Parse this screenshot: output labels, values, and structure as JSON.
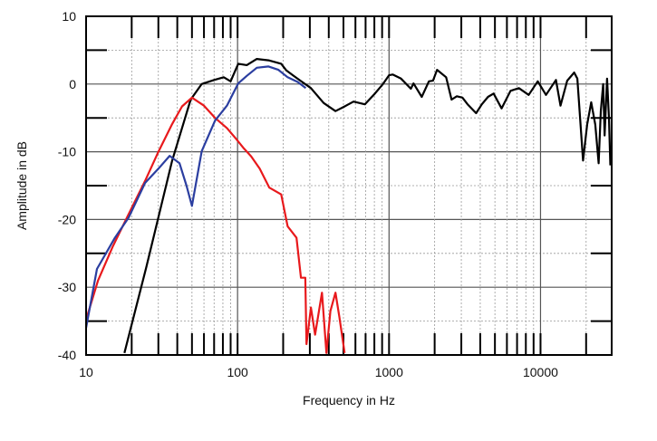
{
  "chart_data": {
    "type": "line",
    "title": "",
    "xlabel": "Frequency in Hz",
    "ylabel": "Amplitude in dB",
    "xscale": "log",
    "xlim": [
      10,
      29500
    ],
    "ylim": [
      -40,
      10
    ],
    "xticks": [
      10,
      100,
      1000,
      10000
    ],
    "xtick_labels": [
      "10",
      "100",
      "1000",
      "10000"
    ],
    "yticks": [
      10,
      0,
      -10,
      -20,
      -30,
      -40
    ],
    "ytick_labels": [
      "10",
      "0",
      "-10",
      "-20",
      "-30",
      "-40"
    ],
    "grid": true,
    "legend": "none",
    "series": [
      {
        "name": "black",
        "color": "#000000",
        "points": [
          [
            17.9,
            -39.7
          ],
          [
            25,
            -27
          ],
          [
            37,
            -11.3
          ],
          [
            49,
            -2.3
          ],
          [
            58,
            0
          ],
          [
            70,
            0.6
          ],
          [
            81,
            1
          ],
          [
            90,
            0.4
          ],
          [
            101,
            3
          ],
          [
            115,
            2.8
          ],
          [
            134,
            3.7
          ],
          [
            160,
            3.5
          ],
          [
            194,
            3
          ],
          [
            210,
            2
          ],
          [
            232,
            1.3
          ],
          [
            260,
            0.5
          ],
          [
            305,
            -0.6
          ],
          [
            370,
            -2.8
          ],
          [
            443,
            -4
          ],
          [
            510,
            -3.3
          ],
          [
            583,
            -2.6
          ],
          [
            692,
            -3
          ],
          [
            800,
            -1.5
          ],
          [
            912,
            0
          ],
          [
            1000,
            1.3
          ],
          [
            1057,
            1.4
          ],
          [
            1200,
            0.8
          ],
          [
            1393,
            -0.7
          ],
          [
            1450,
            0.1
          ],
          [
            1644,
            -1.9
          ],
          [
            1834,
            0.4
          ],
          [
            1950,
            0.5
          ],
          [
            2075,
            2.1
          ],
          [
            2380,
            1
          ],
          [
            2588,
            -2.3
          ],
          [
            2800,
            -1.8
          ],
          [
            3053,
            -2
          ],
          [
            3300,
            -3
          ],
          [
            3758,
            -4.3
          ],
          [
            4100,
            -3
          ],
          [
            4497,
            -1.9
          ],
          [
            4900,
            -1.4
          ],
          [
            5530,
            -3.6
          ],
          [
            6340,
            -1
          ],
          [
            7200,
            -0.6
          ],
          [
            8350,
            -1.6
          ],
          [
            9590,
            0.4
          ],
          [
            10860,
            -1.6
          ],
          [
            12650,
            0.6
          ],
          [
            13550,
            -3.2
          ],
          [
            15000,
            0.5
          ],
          [
            16670,
            1.7
          ],
          [
            17500,
            0.8
          ],
          [
            19100,
            -11.3
          ],
          [
            20300,
            -6
          ],
          [
            21600,
            -2.7
          ],
          [
            23000,
            -6
          ],
          [
            24200,
            -11.7
          ],
          [
            25000,
            -4
          ],
          [
            25900,
            0
          ],
          [
            26500,
            -7.6
          ],
          [
            27500,
            0.8
          ],
          [
            28300,
            -5
          ],
          [
            28900,
            -12
          ]
        ]
      },
      {
        "name": "red",
        "color": "#e8191c",
        "points": [
          [
            10,
            -34.8
          ],
          [
            12,
            -29
          ],
          [
            15,
            -24
          ],
          [
            18.6,
            -19.7
          ],
          [
            24.5,
            -14.3
          ],
          [
            30,
            -10
          ],
          [
            37,
            -5.9
          ],
          [
            43,
            -3.3
          ],
          [
            50,
            -2
          ],
          [
            60,
            -3.2
          ],
          [
            71,
            -5
          ],
          [
            85,
            -6.5
          ],
          [
            97,
            -8
          ],
          [
            110,
            -9.5
          ],
          [
            123,
            -10.7
          ],
          [
            140,
            -12.5
          ],
          [
            162,
            -15.3
          ],
          [
            194,
            -16.3
          ],
          [
            214,
            -21
          ],
          [
            245,
            -22.7
          ],
          [
            262,
            -28.6
          ],
          [
            280,
            -28.6
          ],
          [
            285,
            -38.4
          ],
          [
            305,
            -33
          ],
          [
            325,
            -37
          ],
          [
            361,
            -30.8
          ],
          [
            386,
            -39.7
          ],
          [
            410,
            -33.5
          ],
          [
            443,
            -30.8
          ],
          [
            470,
            -34.4
          ],
          [
            509,
            -39.7
          ]
        ]
      },
      {
        "name": "blue",
        "color": "#2b3ea0",
        "points": [
          [
            10,
            -36
          ],
          [
            11.8,
            -27.3
          ],
          [
            15.5,
            -22.7
          ],
          [
            19.1,
            -19.7
          ],
          [
            24.5,
            -14.6
          ],
          [
            30,
            -12.5
          ],
          [
            35.6,
            -10.6
          ],
          [
            41.4,
            -11.7
          ],
          [
            46,
            -15
          ],
          [
            50,
            -18
          ],
          [
            58,
            -9.9
          ],
          [
            71,
            -5.4
          ],
          [
            85,
            -3.2
          ],
          [
            101,
            0.1
          ],
          [
            115,
            1.2
          ],
          [
            134,
            2.4
          ],
          [
            160,
            2.6
          ],
          [
            186,
            2.1
          ],
          [
            214,
            1
          ],
          [
            250,
            0.3
          ],
          [
            282,
            -0.6
          ]
        ]
      }
    ]
  }
}
